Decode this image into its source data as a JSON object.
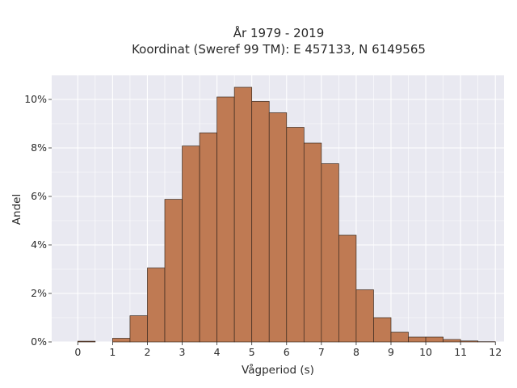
{
  "chart_data": {
    "type": "bar",
    "title": [
      "År 1979 - 2019",
      "Koordinat (Sweref 99 TM): E 457133, N 6149565"
    ],
    "xlabel": "Vågperiod (s)",
    "ylabel": "Andel",
    "xlim": [
      -0.75,
      12.25
    ],
    "ylim": [
      0,
      0.11
    ],
    "xticks": [
      0,
      1,
      2,
      3,
      4,
      5,
      6,
      7,
      8,
      9,
      10,
      11,
      12
    ],
    "xtick_labels": [
      "0",
      "1",
      "2",
      "3",
      "4",
      "5",
      "6",
      "7",
      "8",
      "9",
      "10",
      "11",
      "12"
    ],
    "yticks": [
      0,
      0.02,
      0.04,
      0.06,
      0.08,
      0.1
    ],
    "ytick_labels": [
      "0%",
      "2%",
      "4%",
      "6%",
      "8%",
      "10%"
    ],
    "bin_width": 0.5,
    "bins": [
      {
        "x0": 0.0,
        "x1": 0.5,
        "value": 0.0003
      },
      {
        "x0": 0.5,
        "x1": 1.0,
        "value": 0.0
      },
      {
        "x0": 1.0,
        "x1": 1.5,
        "value": 0.0015
      },
      {
        "x0": 1.5,
        "x1": 2.0,
        "value": 0.0108
      },
      {
        "x0": 2.0,
        "x1": 2.5,
        "value": 0.0305
      },
      {
        "x0": 2.5,
        "x1": 3.0,
        "value": 0.0588
      },
      {
        "x0": 3.0,
        "x1": 3.5,
        "value": 0.0808
      },
      {
        "x0": 3.5,
        "x1": 4.0,
        "value": 0.0862
      },
      {
        "x0": 4.0,
        "x1": 4.5,
        "value": 0.101
      },
      {
        "x0": 4.5,
        "x1": 5.0,
        "value": 0.105
      },
      {
        "x0": 5.0,
        "x1": 5.5,
        "value": 0.0992
      },
      {
        "x0": 5.5,
        "x1": 6.0,
        "value": 0.0945
      },
      {
        "x0": 6.0,
        "x1": 6.5,
        "value": 0.0885
      },
      {
        "x0": 6.5,
        "x1": 7.0,
        "value": 0.082
      },
      {
        "x0": 7.0,
        "x1": 7.5,
        "value": 0.0735
      },
      {
        "x0": 7.5,
        "x1": 8.0,
        "value": 0.044
      },
      {
        "x0": 8.0,
        "x1": 8.5,
        "value": 0.0215
      },
      {
        "x0": 8.5,
        "x1": 9.0,
        "value": 0.01
      },
      {
        "x0": 9.0,
        "x1": 9.5,
        "value": 0.004
      },
      {
        "x0": 9.5,
        "x1": 10.0,
        "value": 0.002
      },
      {
        "x0": 10.0,
        "x1": 10.5,
        "value": 0.002
      },
      {
        "x0": 10.5,
        "x1": 11.0,
        "value": 0.001
      },
      {
        "x0": 11.0,
        "x1": 11.5,
        "value": 0.0004
      },
      {
        "x0": 11.5,
        "x1": 12.0,
        "value": 0.0001
      }
    ],
    "grid": true,
    "colors": {
      "background": "#e9e9f1",
      "grid": "#ffffff",
      "bar_fill": "#bf7a53",
      "bar_edge": "#3a2a20"
    }
  }
}
